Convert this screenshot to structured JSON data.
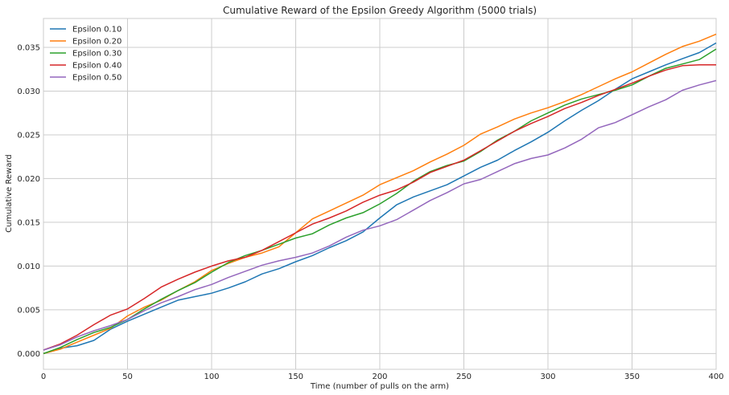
{
  "chart_data": {
    "type": "line",
    "title": "Cumulative Reward of the Epsilon Greedy Algorithm (5000 trials)",
    "xlabel": "Time (number of pulls on the arm)",
    "ylabel": "Cumulative Reward",
    "xlim": [
      0,
      400
    ],
    "ylim": [
      -0.0018,
      0.0383
    ],
    "xticks": [
      "0",
      "50",
      "100",
      "150",
      "200",
      "250",
      "300",
      "350",
      "400"
    ],
    "yticks": [
      "0.000",
      "0.005",
      "0.010",
      "0.015",
      "0.020",
      "0.025",
      "0.030",
      "0.035"
    ],
    "grid": true,
    "legend_position": "top-left",
    "x": [
      0,
      10,
      20,
      30,
      40,
      50,
      60,
      70,
      80,
      90,
      100,
      110,
      120,
      130,
      140,
      150,
      160,
      170,
      180,
      190,
      200,
      210,
      220,
      230,
      240,
      250,
      260,
      270,
      280,
      290,
      300,
      310,
      320,
      330,
      340,
      350,
      360,
      370,
      380,
      390,
      400
    ],
    "series": [
      {
        "name": "Epsilon 0.10",
        "color": "#1f77b4",
        "values": [
          0.0,
          0.0006,
          0.0009,
          0.0015,
          0.0028,
          0.0037,
          0.0045,
          0.0053,
          0.0061,
          0.0065,
          0.0069,
          0.0075,
          0.0082,
          0.0091,
          0.0097,
          0.0105,
          0.0112,
          0.0121,
          0.0129,
          0.0139,
          0.0155,
          0.017,
          0.0179,
          0.0186,
          0.0193,
          0.0203,
          0.0213,
          0.0221,
          0.0232,
          0.0242,
          0.0253,
          0.0266,
          0.0278,
          0.0289,
          0.0302,
          0.0314,
          0.0322,
          0.033,
          0.0337,
          0.0344,
          0.0355
        ]
      },
      {
        "name": "Epsilon 0.20",
        "color": "#ff7f0e",
        "values": [
          0.0,
          0.0005,
          0.0013,
          0.0021,
          0.0029,
          0.0043,
          0.0053,
          0.0061,
          0.0072,
          0.0082,
          0.0095,
          0.0103,
          0.011,
          0.0115,
          0.0122,
          0.0138,
          0.0154,
          0.0163,
          0.0172,
          0.0181,
          0.0193,
          0.0201,
          0.0209,
          0.0219,
          0.0228,
          0.0238,
          0.0251,
          0.0259,
          0.0268,
          0.0275,
          0.0281,
          0.0288,
          0.0296,
          0.0305,
          0.0314,
          0.0322,
          0.0332,
          0.0342,
          0.0351,
          0.0357,
          0.0365
        ]
      },
      {
        "name": "Epsilon 0.30",
        "color": "#2ca02c",
        "values": [
          0.0,
          0.0007,
          0.0016,
          0.0024,
          0.003,
          0.0039,
          0.0051,
          0.0062,
          0.0072,
          0.0081,
          0.0093,
          0.0104,
          0.0112,
          0.0118,
          0.0125,
          0.0132,
          0.0137,
          0.0147,
          0.0155,
          0.0161,
          0.0171,
          0.0183,
          0.0197,
          0.0208,
          0.0215,
          0.022,
          0.0231,
          0.0244,
          0.0254,
          0.0266,
          0.0275,
          0.0284,
          0.0291,
          0.0296,
          0.0301,
          0.0307,
          0.0317,
          0.0326,
          0.0331,
          0.0336,
          0.0348
        ]
      },
      {
        "name": "Epsilon 0.40",
        "color": "#d62728",
        "values": [
          0.0004,
          0.0011,
          0.0021,
          0.0033,
          0.0044,
          0.0051,
          0.0063,
          0.0076,
          0.0085,
          0.0093,
          0.01,
          0.0106,
          0.011,
          0.0118,
          0.0128,
          0.0138,
          0.0148,
          0.0155,
          0.0163,
          0.0173,
          0.0181,
          0.0187,
          0.0196,
          0.0207,
          0.0214,
          0.0221,
          0.0232,
          0.0243,
          0.0254,
          0.0263,
          0.0271,
          0.028,
          0.0287,
          0.0295,
          0.0302,
          0.0309,
          0.0317,
          0.0324,
          0.0329,
          0.033,
          0.033
        ]
      },
      {
        "name": "Epsilon 0.50",
        "color": "#9467bd",
        "values": [
          0.0004,
          0.001,
          0.0019,
          0.0026,
          0.0032,
          0.0039,
          0.0049,
          0.0058,
          0.0065,
          0.0073,
          0.0079,
          0.0087,
          0.0094,
          0.0101,
          0.0106,
          0.011,
          0.0115,
          0.0123,
          0.0133,
          0.0141,
          0.0146,
          0.0153,
          0.0164,
          0.0175,
          0.0184,
          0.0194,
          0.0199,
          0.0208,
          0.0217,
          0.0223,
          0.0227,
          0.0235,
          0.0245,
          0.0258,
          0.0264,
          0.0273,
          0.0282,
          0.029,
          0.0301,
          0.0307,
          0.0312
        ]
      }
    ]
  }
}
